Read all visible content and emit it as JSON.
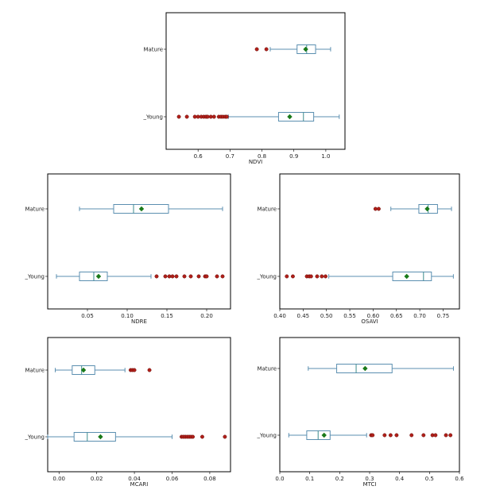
{
  "colors": {
    "box_edge": "#5b8fb0",
    "median": "#3c8c8c",
    "whisker": "#5b8fb0",
    "outlier_fill": "#b0201a",
    "outlier_edge": "#6a0c08",
    "mean_marker": "#1a7a1a"
  },
  "chart_data": [
    {
      "type": "boxplot",
      "orientation": "horizontal",
      "xlabel": "NDVI",
      "categories": [
        "Mature",
        "_Young"
      ],
      "xlim": [
        0.5,
        1.06
      ],
      "xticks": [
        0.6,
        0.7,
        0.8,
        0.9,
        1.0
      ],
      "xtick_labels": [
        "0.6",
        "0.7",
        "0.8",
        "0.9",
        "1.0"
      ],
      "series": [
        {
          "category": "Mature",
          "whisker_low": 0.826,
          "q1": 0.91,
          "median": 0.94,
          "q3": 0.968,
          "whisker_high": 1.015,
          "mean": 0.937,
          "outliers": [
            0.784,
            0.814
          ]
        },
        {
          "category": "_Young",
          "whisker_low": 0.695,
          "q1": 0.852,
          "median": 0.93,
          "q3": 0.962,
          "whisker_high": 1.042,
          "mean": 0.887,
          "outliers": [
            0.54,
            0.565,
            0.59,
            0.6,
            0.61,
            0.618,
            0.625,
            0.63,
            0.64,
            0.65,
            0.665,
            0.672,
            0.678,
            0.685,
            0.69
          ]
        }
      ]
    },
    {
      "type": "boxplot",
      "orientation": "horizontal",
      "xlabel": "NDRE",
      "categories": [
        "Mature",
        "_Young"
      ],
      "xlim": [
        0.0,
        0.23
      ],
      "xticks": [
        0.05,
        0.1,
        0.15,
        0.2
      ],
      "xtick_labels": [
        "0.05",
        "0.10",
        "0.15",
        "0.20"
      ],
      "series": [
        {
          "category": "Mature",
          "whisker_low": 0.04,
          "q1": 0.083,
          "median": 0.108,
          "q3": 0.152,
          "whisker_high": 0.22,
          "mean": 0.118,
          "outliers": []
        },
        {
          "category": "_Young",
          "whisker_low": 0.011,
          "q1": 0.04,
          "median": 0.058,
          "q3": 0.075,
          "whisker_high": 0.13,
          "mean": 0.064,
          "outliers": [
            0.137,
            0.148,
            0.153,
            0.157,
            0.162,
            0.172,
            0.18,
            0.19,
            0.198,
            0.2,
            0.213,
            0.22
          ]
        }
      ]
    },
    {
      "type": "boxplot",
      "orientation": "horizontal",
      "xlabel": "OSAVI",
      "categories": [
        "Mature",
        "_Young"
      ],
      "xlim": [
        0.4,
        0.785
      ],
      "xticks": [
        0.4,
        0.45,
        0.5,
        0.55,
        0.6,
        0.65,
        0.7,
        0.75
      ],
      "xtick_labels": [
        "0.40",
        "0.45",
        "0.50",
        "0.55",
        "0.60",
        "0.65",
        "0.70",
        "0.75"
      ],
      "series": [
        {
          "category": "Mature",
          "whisker_low": 0.638,
          "q1": 0.698,
          "median": 0.718,
          "q3": 0.738,
          "whisker_high": 0.768,
          "mean": 0.716,
          "outliers": [
            0.605,
            0.612
          ]
        },
        {
          "category": "_Young",
          "whisker_low": 0.505,
          "q1": 0.642,
          "median": 0.708,
          "q3": 0.725,
          "whisker_high": 0.772,
          "mean": 0.672,
          "outliers": [
            0.415,
            0.428,
            0.458,
            0.463,
            0.467,
            0.48,
            0.49,
            0.498
          ]
        }
      ]
    },
    {
      "type": "boxplot",
      "orientation": "horizontal",
      "xlabel": "MCARI",
      "categories": [
        "Mature",
        "_Young"
      ],
      "xlim": [
        -0.006,
        0.091
      ],
      "xticks": [
        0.0,
        0.02,
        0.04,
        0.06,
        0.08
      ],
      "xtick_labels": [
        "0.00",
        "0.02",
        "0.04",
        "0.06",
        "0.08"
      ],
      "series": [
        {
          "category": "Mature",
          "whisker_low": -0.002,
          "q1": 0.007,
          "median": 0.012,
          "q3": 0.019,
          "whisker_high": 0.035,
          "mean": 0.013,
          "outliers": [
            0.038,
            0.039,
            0.04,
            0.048
          ]
        },
        {
          "category": "_Young",
          "whisker_low": -0.006,
          "q1": 0.008,
          "median": 0.015,
          "q3": 0.03,
          "whisker_high": 0.06,
          "mean": 0.022,
          "outliers": [
            0.065,
            0.066,
            0.067,
            0.068,
            0.069,
            0.07,
            0.071,
            0.076,
            0.088
          ]
        }
      ]
    },
    {
      "type": "boxplot",
      "orientation": "horizontal",
      "xlabel": "MTCI",
      "categories": [
        "Mature",
        "_Young"
      ],
      "xlim": [
        0.0,
        0.6
      ],
      "xticks": [
        0.0,
        0.1,
        0.2,
        0.3,
        0.4,
        0.5,
        0.6
      ],
      "xtick_labels": [
        "0.0",
        "0.1",
        "0.2",
        "0.3",
        "0.4",
        "0.5",
        "0.6"
      ],
      "series": [
        {
          "category": "Mature",
          "whisker_low": 0.095,
          "q1": 0.19,
          "median": 0.255,
          "q3": 0.375,
          "whisker_high": 0.58,
          "mean": 0.285,
          "outliers": []
        },
        {
          "category": "_Young",
          "whisker_low": 0.03,
          "q1": 0.09,
          "median": 0.128,
          "q3": 0.168,
          "whisker_high": 0.29,
          "mean": 0.148,
          "outliers": [
            0.305,
            0.31,
            0.35,
            0.37,
            0.39,
            0.44,
            0.48,
            0.51,
            0.52,
            0.555,
            0.57
          ]
        }
      ]
    }
  ]
}
